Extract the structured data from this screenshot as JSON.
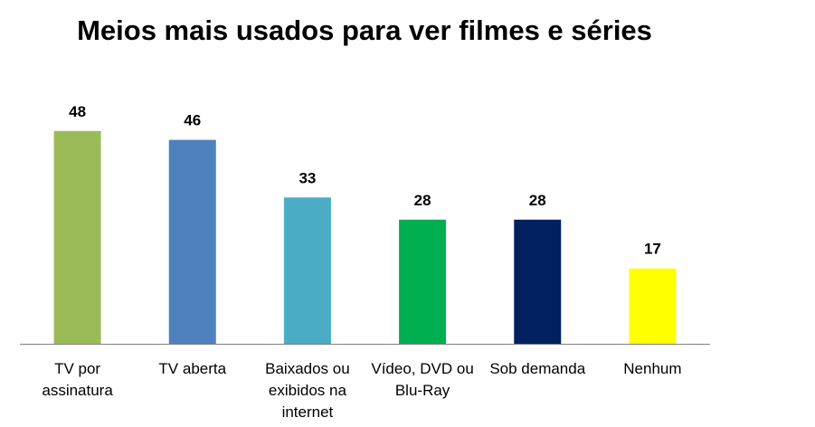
{
  "chart_data": {
    "type": "bar",
    "title": "Meios mais usados para ver filmes e séries",
    "xlabel": "",
    "ylabel": "",
    "ylim": [
      0,
      50
    ],
    "grid": false,
    "legend": "none",
    "categories": [
      [
        "TV por",
        "assinatura"
      ],
      [
        "TV aberta"
      ],
      [
        "Baixados ou",
        "exibidos na",
        "internet"
      ],
      [
        "Vídeo, DVD ou",
        "Blu-Ray"
      ],
      [
        "Sob demanda"
      ],
      [
        "Nenhum"
      ]
    ],
    "values": [
      48,
      46,
      33,
      28,
      28,
      17
    ],
    "colors": [
      "#9BBB59",
      "#4F81BD",
      "#4BACC6",
      "#00B050",
      "#002060",
      "#FFFF00"
    ],
    "axis_color": "#7F7F7F"
  }
}
